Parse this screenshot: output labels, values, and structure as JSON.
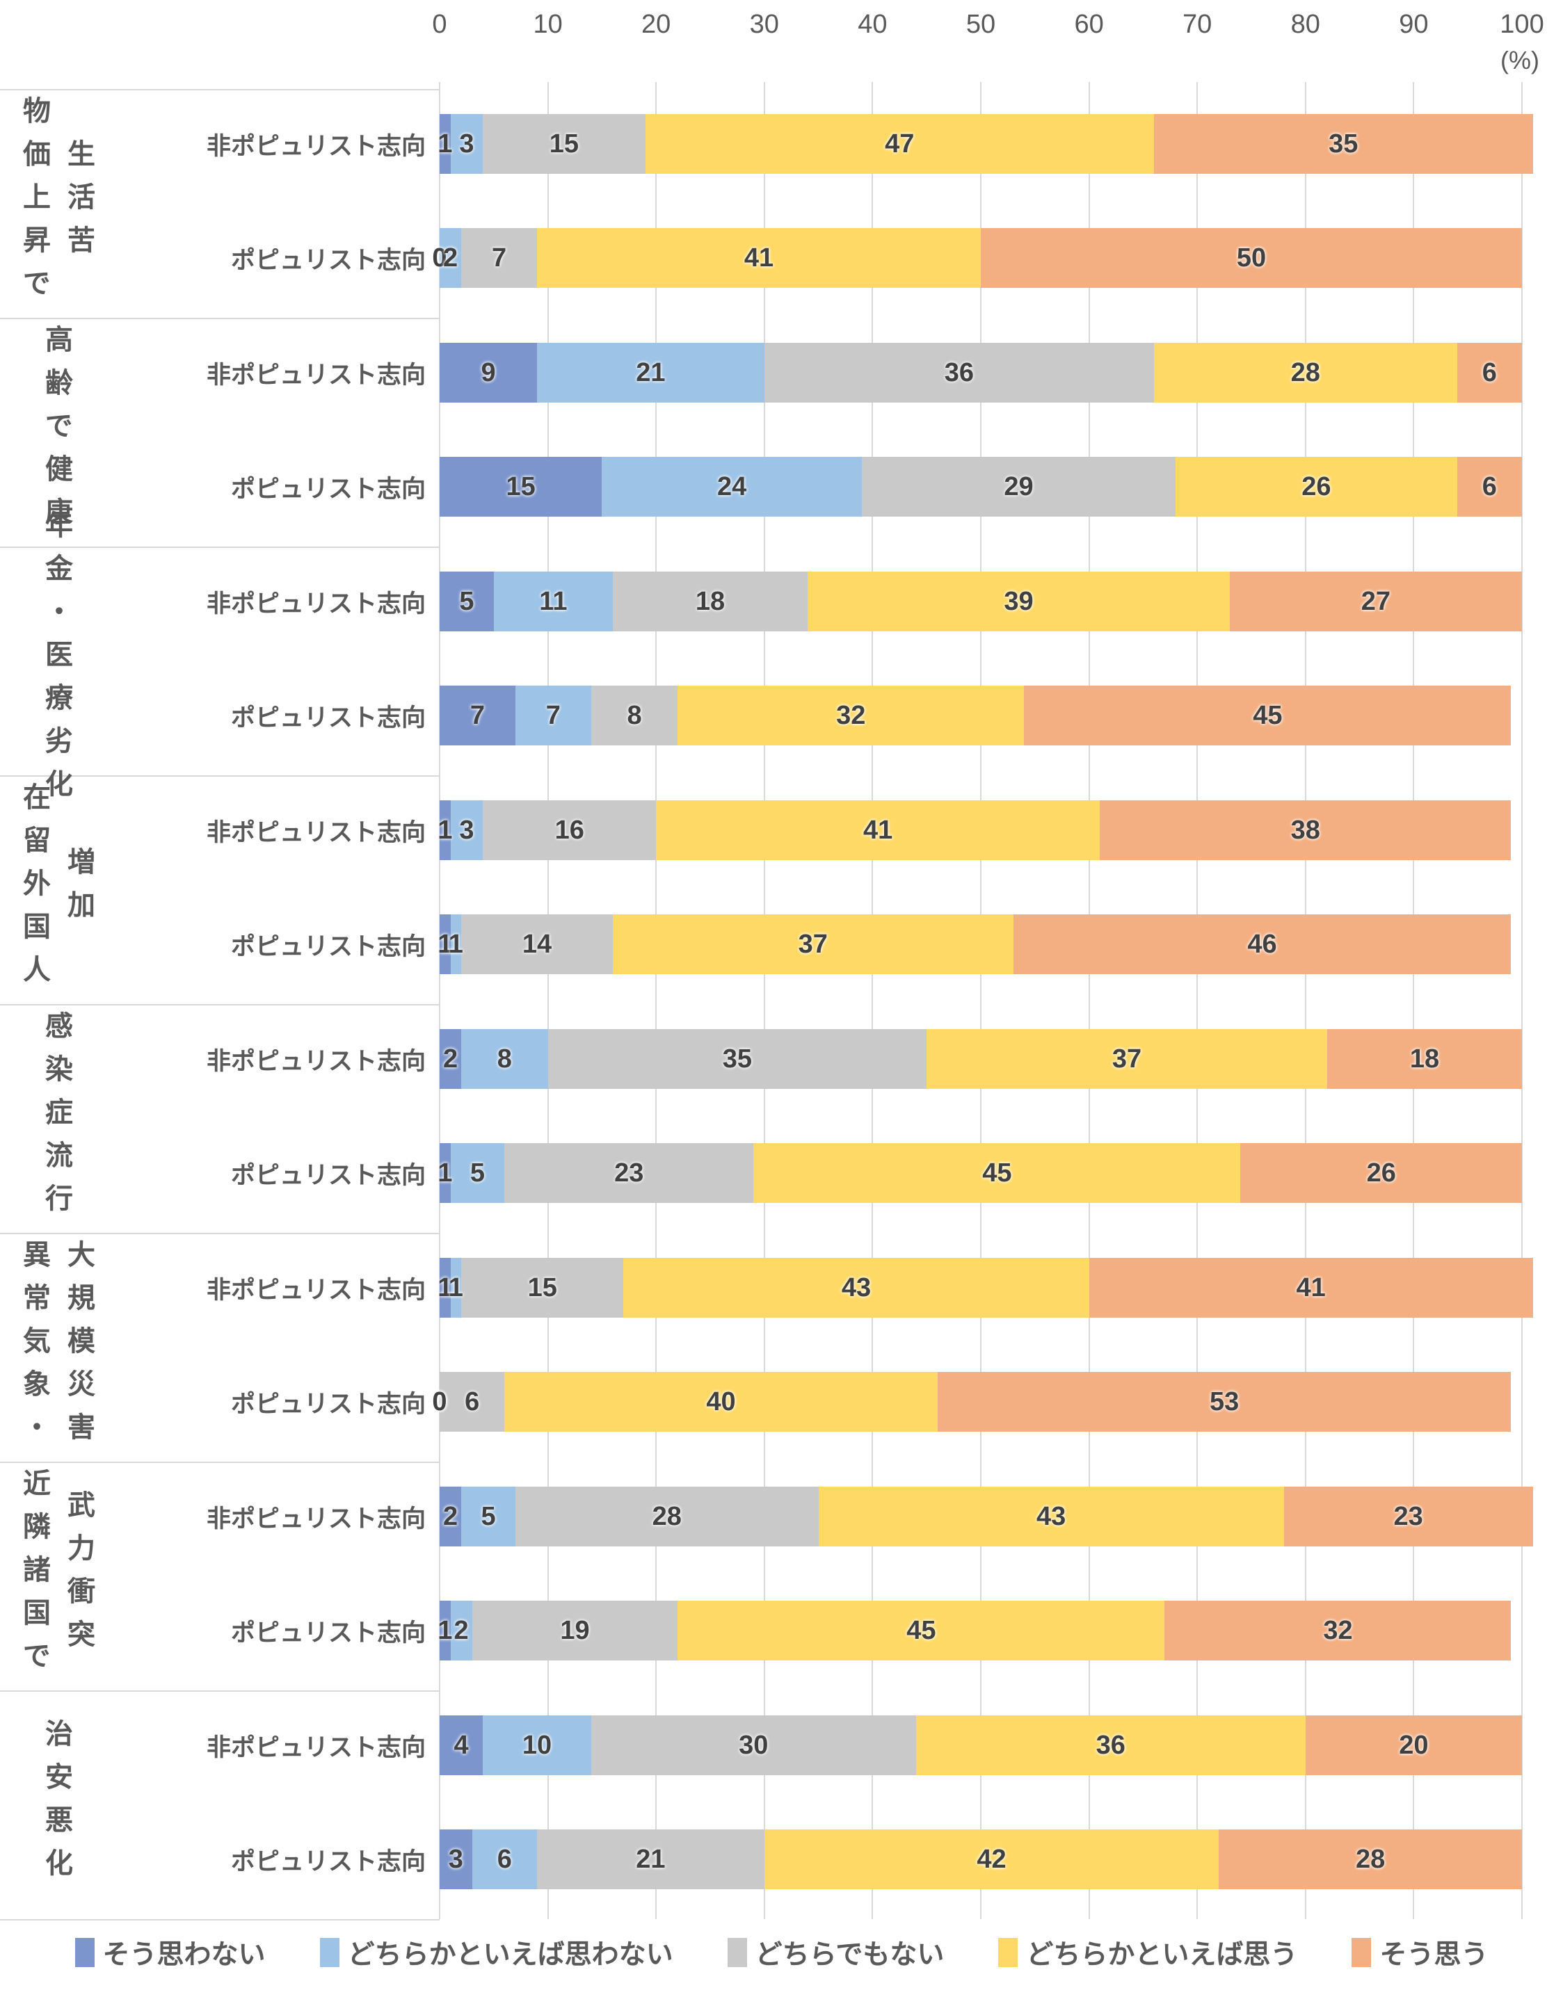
{
  "axis": {
    "unit_label": "(%)",
    "ticks": [
      0,
      10,
      20,
      30,
      40,
      50,
      60,
      70,
      80,
      90,
      100
    ]
  },
  "legend": [
    {
      "label": "そう思わない",
      "color": "#7C96CD"
    },
    {
      "label": "どちらかといえば思わない",
      "color": "#9DC3E6"
    },
    {
      "label": "どちらでもない",
      "color": "#C9C9C9"
    },
    {
      "label": "どちらかといえば思う",
      "color": "#FFD965"
    },
    {
      "label": "そう思う",
      "color": "#F3AE81"
    }
  ],
  "chart_data": {
    "type": "bar",
    "stacked": true,
    "orientation": "horizontal",
    "unit": "%",
    "xlim": [
      0,
      100
    ],
    "x_ticks": [
      0,
      10,
      20,
      30,
      40,
      50,
      60,
      70,
      80,
      90,
      100
    ],
    "grid": "vertical-major",
    "legend_position": "bottom",
    "series": [
      "そう思わない",
      "どちらかといえば思わない",
      "どちらでもない",
      "どちらかといえば思う",
      "そう思う"
    ],
    "series_colors": [
      "#7C96CD",
      "#9DC3E6",
      "#C9C9C9",
      "#FFD965",
      "#F3AE81"
    ],
    "row_labels": [
      "非ポピュリスト志向",
      "ポピュリスト志向"
    ],
    "groups": [
      {
        "category": "物価上昇で生活苦",
        "category_lines": [
          "物価上昇で",
          "生活苦"
        ],
        "rows": [
          {
            "label": "非ポピュリスト志向",
            "values": [
              1,
              3,
              15,
              47,
              35
            ]
          },
          {
            "label": "ポピュリスト志向",
            "values": [
              0,
              2,
              7,
              41,
              50
            ]
          }
        ]
      },
      {
        "category": "高齢で健康",
        "category_lines": [
          "高齢で健康"
        ],
        "rows": [
          {
            "label": "非ポピュリスト志向",
            "values": [
              9,
              21,
              36,
              28,
              6
            ]
          },
          {
            "label": "ポピュリスト志向",
            "values": [
              15,
              24,
              29,
              26,
              6
            ]
          }
        ]
      },
      {
        "category": "年金・医療劣化",
        "category_lines": [
          "年金・医療劣化"
        ],
        "rows": [
          {
            "label": "非ポピュリスト志向",
            "values": [
              5,
              11,
              18,
              39,
              27
            ]
          },
          {
            "label": "ポピュリスト志向",
            "values": [
              7,
              7,
              8,
              32,
              45
            ]
          }
        ]
      },
      {
        "category": "在留外国人増加",
        "category_lines": [
          "在留外国人",
          "増加"
        ],
        "rows": [
          {
            "label": "非ポピュリスト志向",
            "values": [
              1,
              3,
              16,
              41,
              38
            ]
          },
          {
            "label": "ポピュリスト志向",
            "values": [
              1,
              1,
              14,
              37,
              46
            ]
          }
        ]
      },
      {
        "category": "感染症流行",
        "category_lines": [
          "感染症流行"
        ],
        "rows": [
          {
            "label": "非ポピュリスト志向",
            "values": [
              2,
              8,
              35,
              37,
              18
            ]
          },
          {
            "label": "ポピュリスト志向",
            "values": [
              1,
              5,
              23,
              45,
              26
            ]
          }
        ]
      },
      {
        "category": "異常気象・大規模災害",
        "category_lines": [
          "異常気象・",
          "大規模災害"
        ],
        "rows": [
          {
            "label": "非ポピュリスト志向",
            "values": [
              1,
              1,
              15,
              43,
              41
            ]
          },
          {
            "label": "ポピュリスト志向",
            "values": [
              0,
              0,
              6,
              40,
              53
            ]
          }
        ]
      },
      {
        "category": "近隣諸国で武力衝突",
        "category_lines": [
          "近隣諸国で",
          "武力衝突"
        ],
        "rows": [
          {
            "label": "非ポピュリスト志向",
            "values": [
              2,
              5,
              28,
              43,
              23
            ]
          },
          {
            "label": "ポピュリスト志向",
            "values": [
              1,
              2,
              19,
              45,
              32
            ]
          }
        ]
      },
      {
        "category": "治安悪化",
        "category_lines": [
          "治安悪化"
        ],
        "rows": [
          {
            "label": "非ポピュリスト志向",
            "values": [
              4,
              10,
              30,
              36,
              20
            ]
          },
          {
            "label": "ポピュリスト志向",
            "values": [
              3,
              6,
              21,
              42,
              28
            ]
          }
        ]
      }
    ]
  }
}
